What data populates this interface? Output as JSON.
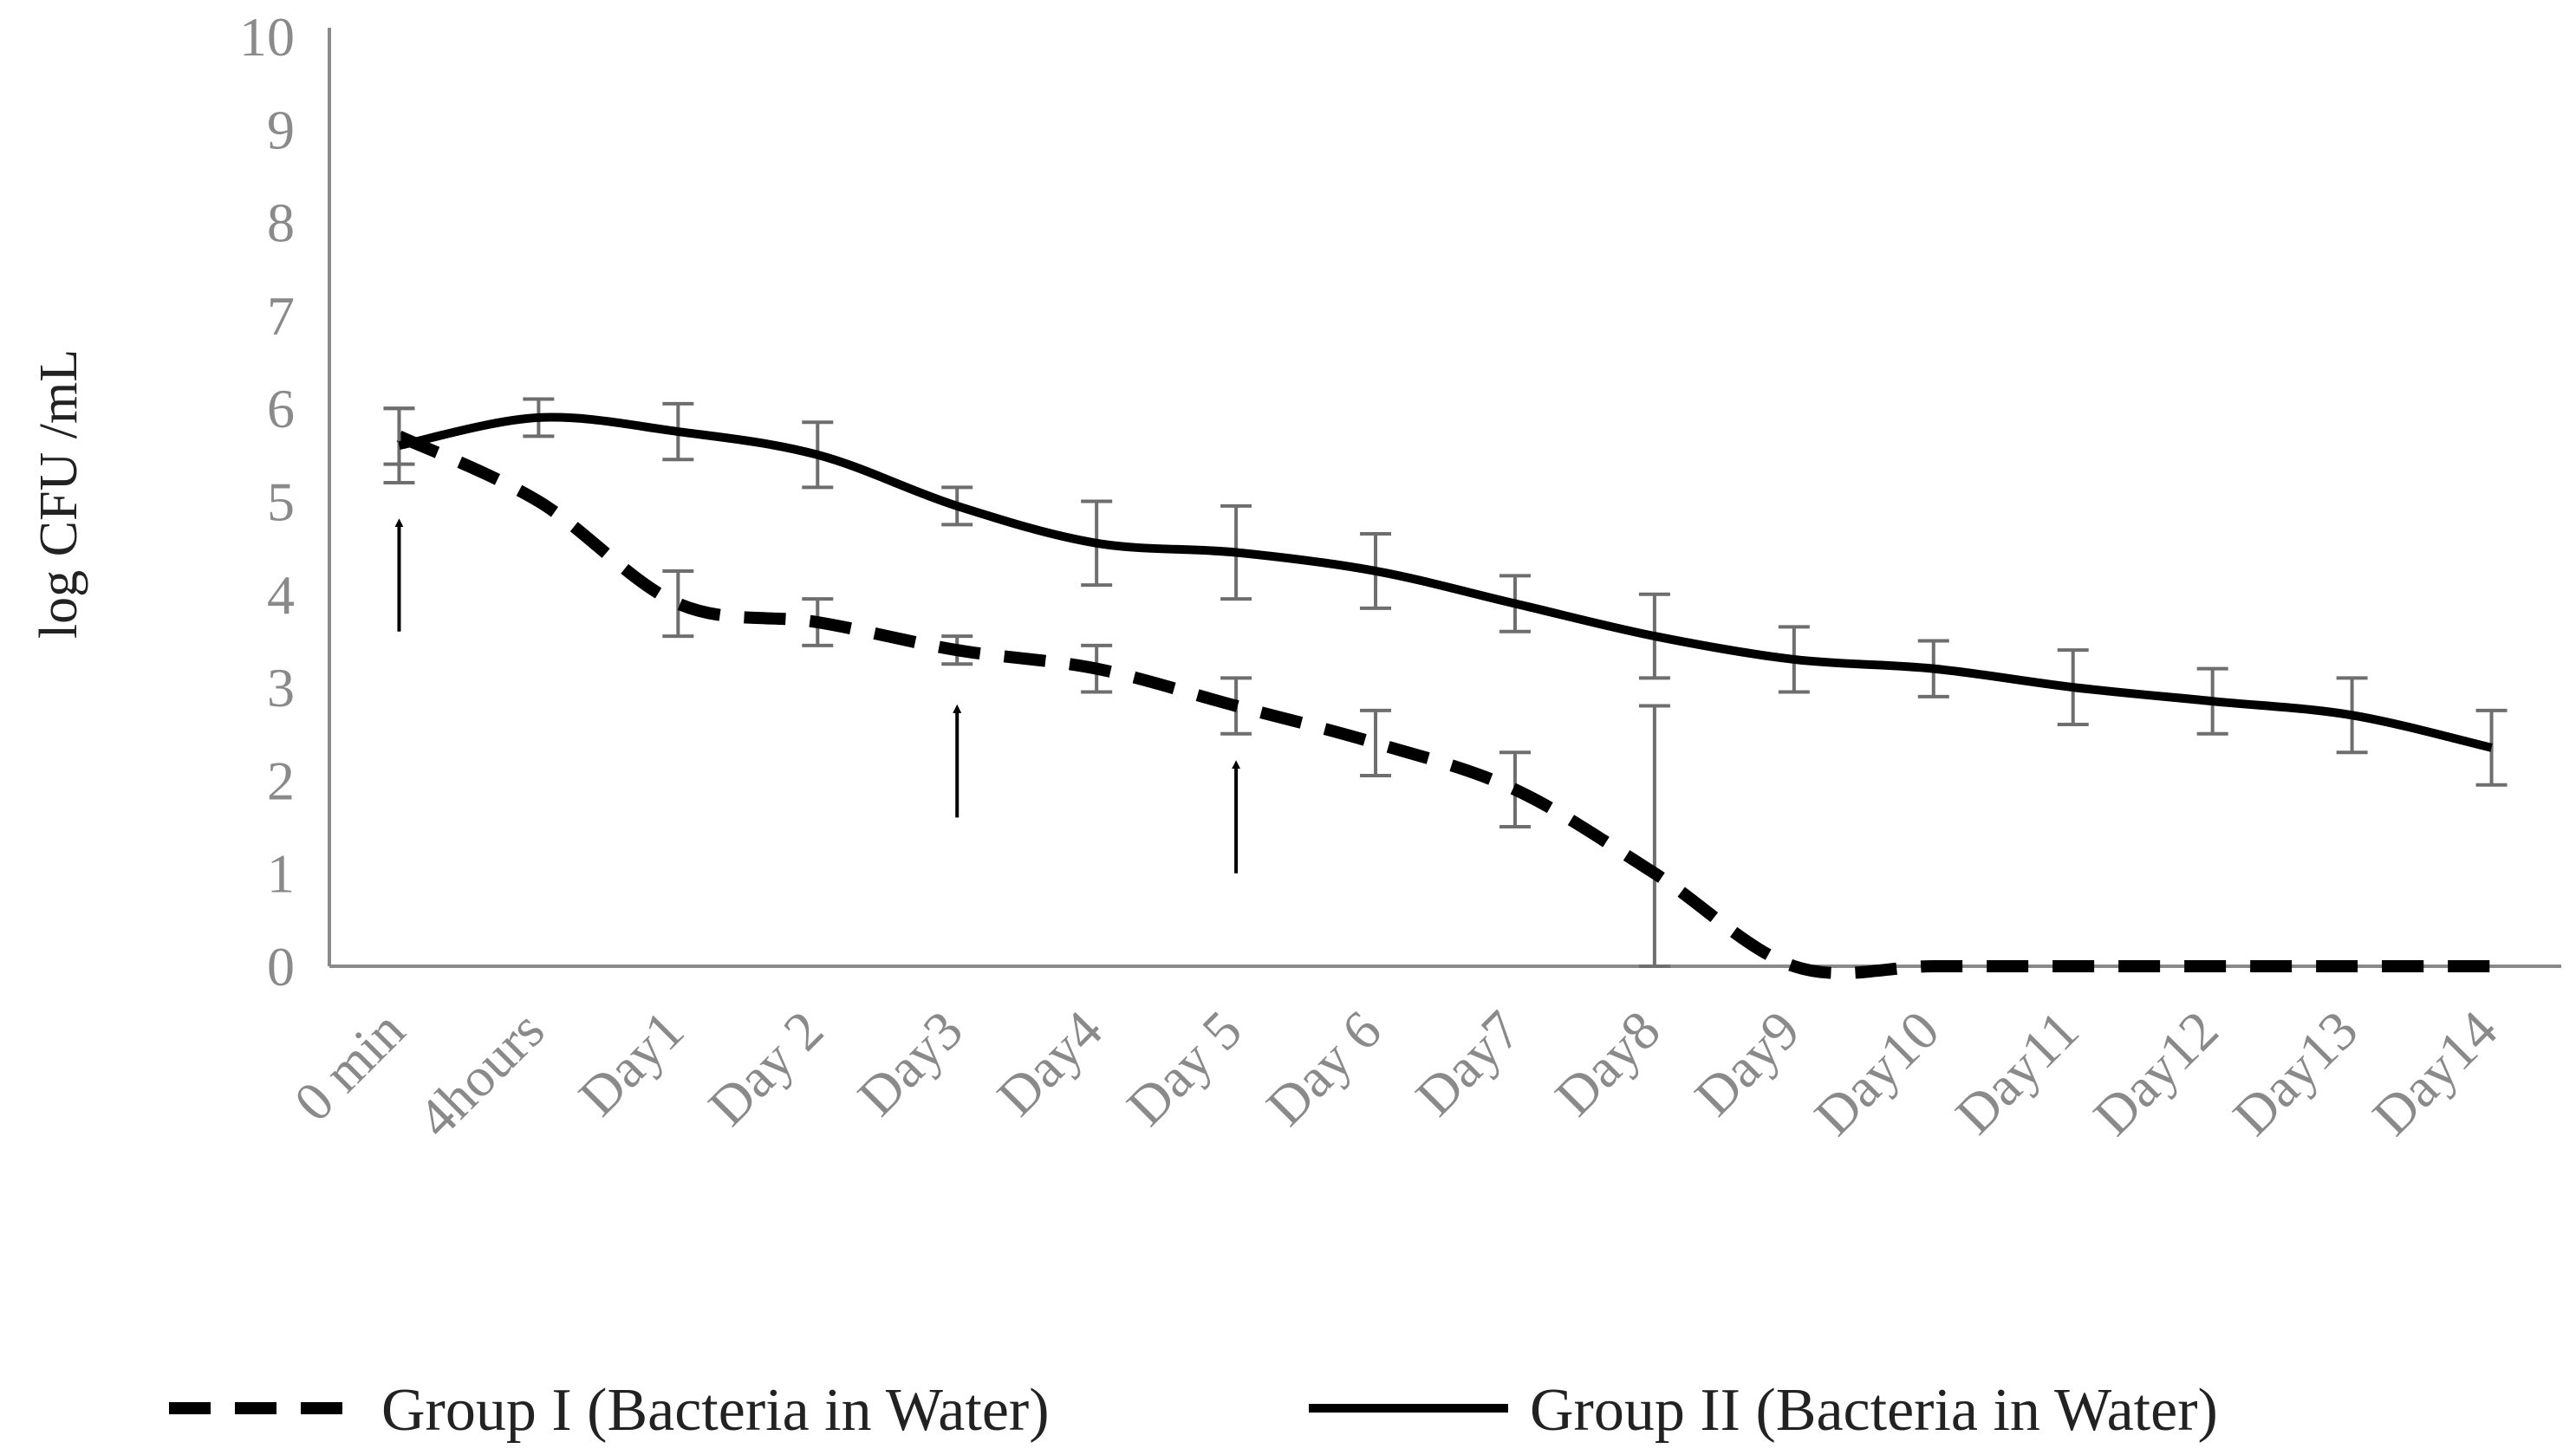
{
  "chart_data": {
    "type": "line",
    "title": "",
    "xlabel": "",
    "ylabel": "log CFU /mL",
    "ylim": [
      0,
      10
    ],
    "yticks": [
      "0",
      "1",
      "2",
      "3",
      "4",
      "5",
      "6",
      "7",
      "8",
      "9",
      "10"
    ],
    "categories": [
      "0 min",
      "4hours",
      "Day1",
      "Day 2",
      "Day3",
      "Day4",
      "Day 5",
      "Day 6",
      "Day7",
      "Day8",
      "Day9",
      "Day10",
      "Day11",
      "Day12",
      "Day13",
      "Day14"
    ],
    "series": [
      {
        "name": "Group I (Bacteria in Water)",
        "style": "dashed",
        "color": "#000000",
        "values": [
          5.7,
          5.0,
          3.9,
          3.7,
          3.4,
          3.2,
          2.8,
          2.4,
          1.9,
          1.0,
          0.0,
          0.0,
          0.0,
          0.0,
          0.0,
          0.0
        ],
        "errors": [
          0.3,
          0.0,
          0.35,
          0.25,
          0.15,
          0.25,
          0.3,
          0.35,
          0.4,
          1.8,
          0.0,
          0.0,
          0.0,
          0.0,
          0.0,
          0.0
        ]
      },
      {
        "name": "Group II (Bacteria in Water)",
        "style": "solid",
        "color": "#000000",
        "values": [
          5.6,
          5.9,
          5.75,
          5.5,
          4.95,
          4.55,
          4.45,
          4.25,
          3.9,
          3.55,
          3.3,
          3.2,
          3.0,
          2.85,
          2.7,
          2.35
        ],
        "errors": [
          0.4,
          0.2,
          0.3,
          0.35,
          0.2,
          0.45,
          0.5,
          0.4,
          0.3,
          0.45,
          0.35,
          0.3,
          0.4,
          0.35,
          0.4,
          0.4
        ]
      }
    ],
    "arrows": [
      {
        "x": "0 min",
        "from": 3.6,
        "to": 4.9
      },
      {
        "x": "Day3",
        "from": 1.6,
        "to": 2.9
      },
      {
        "x": "Day 5",
        "from": 1.0,
        "to": 2.3
      }
    ],
    "legend_position": "bottom"
  }
}
